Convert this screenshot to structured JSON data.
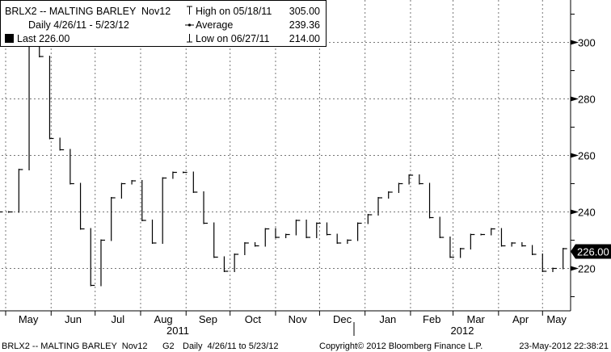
{
  "chart_data": {
    "type": "line",
    "title": "BRLX2 -- MALTING BARLEY  Nov12",
    "subtitle": "Daily 4/26/11 - 5/23/12",
    "ylim": [
      205,
      315
    ],
    "yticks": [
      220,
      240,
      260,
      280,
      300
    ],
    "ytick_labels": [
      "220",
      "240",
      "260",
      "280",
      "300"
    ],
    "xtick_labels": [
      "May",
      "Jun",
      "Jul",
      "Aug",
      "Sep",
      "Oct",
      "Nov",
      "Dec",
      "Jan",
      "Feb",
      "Mar",
      "Apr",
      "May"
    ],
    "xtick_dates": [
      "2011-05-01",
      "2011-06-01",
      "2011-07-01",
      "2011-08-01",
      "2011-09-01",
      "2011-10-01",
      "2011-11-01",
      "2011-12-01",
      "2012-01-01",
      "2012-02-01",
      "2012-03-01",
      "2012-04-01",
      "2012-05-01",
      "2012-06-01"
    ],
    "year_labels": [
      "2011",
      "2012"
    ],
    "grid": true,
    "legend_placement": "top-left",
    "x": [
      "2011-04-26",
      "2011-05-03",
      "2011-05-10",
      "2011-05-17",
      "2011-05-24",
      "2011-05-31",
      "2011-06-07",
      "2011-06-14",
      "2011-06-21",
      "2011-06-28",
      "2011-07-05",
      "2011-07-12",
      "2011-07-19",
      "2011-07-26",
      "2011-08-02",
      "2011-08-09",
      "2011-08-16",
      "2011-08-23",
      "2011-08-30",
      "2011-09-06",
      "2011-09-13",
      "2011-09-20",
      "2011-09-27",
      "2011-10-04",
      "2011-10-11",
      "2011-10-18",
      "2011-10-25",
      "2011-11-01",
      "2011-11-08",
      "2011-11-15",
      "2011-11-22",
      "2011-11-29",
      "2011-12-06",
      "2011-12-13",
      "2011-12-20",
      "2011-12-27",
      "2012-01-03",
      "2012-01-10",
      "2012-01-17",
      "2012-01-24",
      "2012-01-31",
      "2012-02-07",
      "2012-02-14",
      "2012-02-21",
      "2012-02-28",
      "2012-03-06",
      "2012-03-13",
      "2012-03-20",
      "2012-03-27",
      "2012-04-03",
      "2012-04-10",
      "2012-04-17",
      "2012-04-24",
      "2012-05-01",
      "2012-05-08",
      "2012-05-15",
      "2012-05-23"
    ],
    "values": [
      240,
      240,
      255,
      300,
      295,
      266,
      262,
      250,
      234,
      214,
      230,
      245,
      250,
      251,
      237,
      229,
      252,
      254,
      254,
      247,
      236,
      224,
      219,
      225,
      229,
      228,
      234,
      231,
      232,
      237,
      231,
      236,
      232,
      229,
      230,
      236,
      239,
      245,
      247,
      250,
      253,
      250,
      238,
      231,
      224,
      227,
      232,
      232,
      234,
      228,
      229,
      228,
      225,
      219,
      220,
      227,
      226
    ],
    "colors": {
      "line": "#000000",
      "grid": "#777777",
      "last_badge": "#000000"
    }
  },
  "legend": {
    "title": "BRLX2 -- MALTING BARLEY  Nov12",
    "period": "Daily 4/26/11 - 5/23/12",
    "last": "Last 226.00",
    "high_label": "High on 05/18/11",
    "high_value": "305.00",
    "avg_label": "Average",
    "avg_value": "239.36",
    "low_label": "Low on 06/27/11",
    "low_value": "214.00"
  },
  "last_badge": "226.00",
  "last_value": 226,
  "footer": {
    "ticker": "BRLX2 -- MALTING BARLEY  Nov12",
    "page": "G2",
    "range": "Daily  4/26/11 to 5/23/12",
    "copyright": "Copyright© 2012 Bloomberg Finance L.P.",
    "timestamp": "23-May-2012 22:38:21"
  }
}
